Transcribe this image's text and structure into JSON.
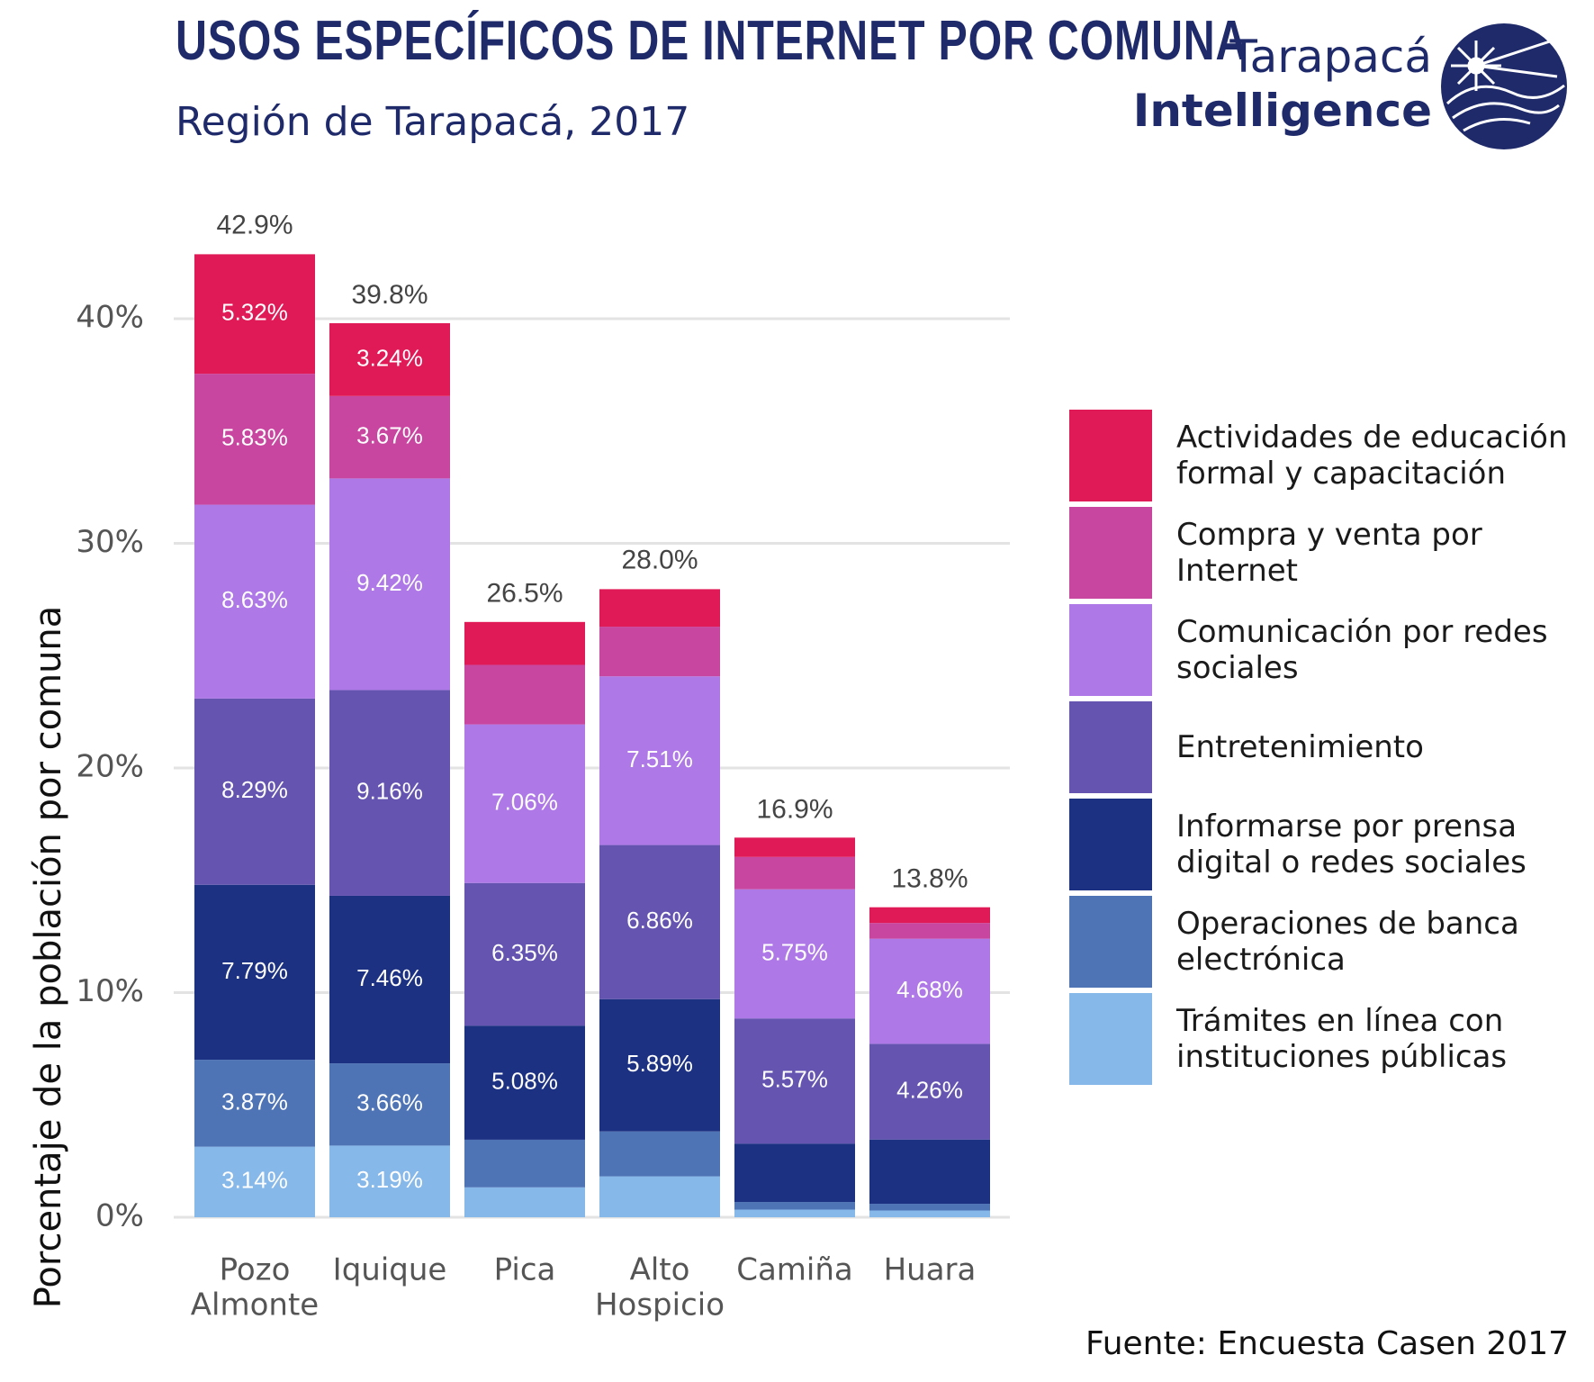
{
  "header": {
    "title": "USOS ESPECÍFICOS DE INTERNET POR COMUNA",
    "subtitle": "Región de Tarapacá, 2017"
  },
  "brand": {
    "line1": "Tarapacá",
    "line2": "Intelligence",
    "logo_icon": "compass-globe-icon"
  },
  "footer": {
    "source": "Fuente: Encuesta Casen 2017"
  },
  "colors": {
    "grid": "#e3e3e3",
    "axis_text": "#555555",
    "total_label": "#444444",
    "segment_label": "#ffffff",
    "brand": "#1f2a6b"
  },
  "chart_data": {
    "type": "bar",
    "stacked": true,
    "title": "USOS ESPECÍFICOS DE INTERNET POR COMUNA",
    "subtitle": "Región de Tarapacá, 2017",
    "xlabel": "",
    "ylabel": "Porcentaje de la población por comuna",
    "ylim": [
      0,
      45
    ],
    "yticks": [
      0,
      10,
      20,
      30,
      40
    ],
    "ytick_labels": [
      "0%",
      "10%",
      "20%",
      "30%",
      "40%"
    ],
    "grid": true,
    "legend_position": "right",
    "categories": [
      [
        "Pozo",
        "Almonte"
      ],
      [
        "Iquique"
      ],
      [
        "Pica"
      ],
      [
        "Alto",
        "Hospicio"
      ],
      [
        "Camiña"
      ],
      [
        "Huara"
      ]
    ],
    "totals": [
      42.9,
      39.8,
      26.5,
      28.0,
      16.9,
      13.8
    ],
    "total_labels": [
      "42.9%",
      "39.8%",
      "26.5%",
      "28.0%",
      "16.9%",
      "13.8%"
    ],
    "series": [
      {
        "name": "Trámites en línea con instituciones públicas",
        "color": "#87b8ea",
        "values": [
          3.14,
          3.19,
          1.33,
          1.82,
          0.34,
          0.3
        ],
        "labels": [
          "3.14%",
          "3.19%",
          "",
          "",
          "",
          ""
        ]
      },
      {
        "name": "Operaciones de banca electrónica",
        "color": "#4f74b6",
        "values": [
          3.87,
          3.66,
          2.12,
          2.0,
          0.34,
          0.3
        ],
        "labels": [
          "3.87%",
          "3.66%",
          "",
          "",
          "",
          ""
        ]
      },
      {
        "name": "Informarse por prensa digital o redes sociales",
        "color": "#1d3183",
        "values": [
          7.79,
          7.46,
          5.08,
          5.89,
          2.6,
          2.86
        ],
        "labels": [
          "7.79%",
          "7.46%",
          "5.08%",
          "5.89%",
          "",
          ""
        ]
      },
      {
        "name": "Entretenimiento",
        "color": "#6555b1",
        "values": [
          8.29,
          9.16,
          6.35,
          6.86,
          5.57,
          4.26
        ],
        "labels": [
          "8.29%",
          "9.16%",
          "6.35%",
          "6.86%",
          "5.57%",
          "4.26%"
        ]
      },
      {
        "name": "Comunicación por redes sociales",
        "color": "#ae78e6",
        "values": [
          8.63,
          9.42,
          7.06,
          7.51,
          5.75,
          4.68
        ],
        "labels": [
          "8.63%",
          "9.42%",
          "7.06%",
          "7.51%",
          "5.75%",
          "4.68%"
        ]
      },
      {
        "name": "Compra y venta por Internet",
        "color": "#c8469f",
        "values": [
          5.83,
          3.67,
          2.65,
          2.21,
          1.44,
          0.7
        ],
        "labels": [
          "5.83%",
          "3.67%",
          "",
          "",
          "",
          ""
        ]
      },
      {
        "name": "Actividades de educación formal y capacitación",
        "color": "#e01a56",
        "values": [
          5.32,
          3.24,
          1.91,
          1.67,
          0.86,
          0.7
        ],
        "labels": [
          "5.32%",
          "3.24%",
          "",
          "",
          "",
          ""
        ]
      }
    ]
  },
  "legend": {
    "items": [
      {
        "lines": [
          "Actividades de educación",
          "formal y capacitación"
        ],
        "color": "#e01a56"
      },
      {
        "lines": [
          "Compra y venta por",
          "Internet"
        ],
        "color": "#c8469f"
      },
      {
        "lines": [
          "Comunicación por redes",
          "sociales"
        ],
        "color": "#ae78e6"
      },
      {
        "lines": [
          "Entretenimiento"
        ],
        "color": "#6555b1"
      },
      {
        "lines": [
          "Informarse por prensa",
          "digital o redes sociales"
        ],
        "color": "#1d3183"
      },
      {
        "lines": [
          "Operaciones de banca",
          "electrónica"
        ],
        "color": "#4f74b6"
      },
      {
        "lines": [
          "Trámites en línea con",
          "instituciones públicas"
        ],
        "color": "#87b8ea"
      }
    ]
  }
}
